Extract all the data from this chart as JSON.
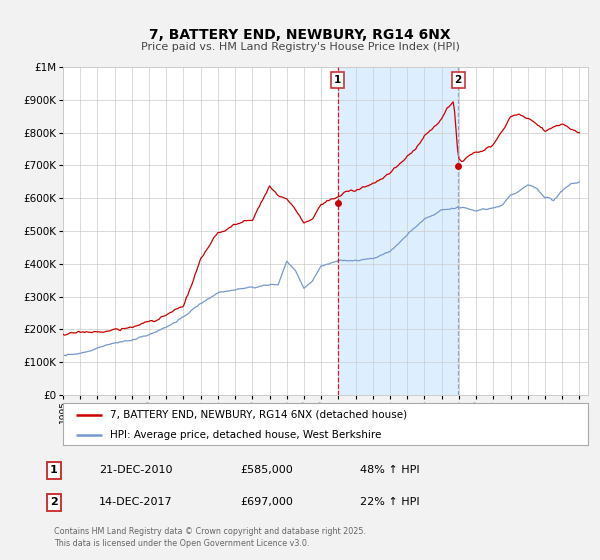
{
  "title": "7, BATTERY END, NEWBURY, RG14 6NX",
  "subtitle": "Price paid vs. HM Land Registry's House Price Index (HPI)",
  "legend_line1": "7, BATTERY END, NEWBURY, RG14 6NX (detached house)",
  "legend_line2": "HPI: Average price, detached house, West Berkshire",
  "footnote": "Contains HM Land Registry data © Crown copyright and database right 2025.\nThis data is licensed under the Open Government Licence v3.0.",
  "marker1_date": "21-DEC-2010",
  "marker1_price": "£585,000",
  "marker1_hpi": "48% ↑ HPI",
  "marker1_year": 2010.96,
  "marker1_value": 585000,
  "marker2_date": "14-DEC-2017",
  "marker2_price": "£697,000",
  "marker2_hpi": "22% ↑ HPI",
  "marker2_year": 2017.96,
  "marker2_value": 697000,
  "red_line_color": "#cc0000",
  "blue_line_color": "#7799cc",
  "background_color": "#f2f2f2",
  "plot_bg_color": "#ffffff",
  "ylim_min": 0,
  "ylim_max": 1000000,
  "xlim_min": 1995,
  "xlim_max": 2025.5,
  "grid_color": "#cccccc",
  "shade_color": "#ddeeff",
  "marker1_vline_color": "#cc0000",
  "marker2_vline_color": "#8899bb"
}
